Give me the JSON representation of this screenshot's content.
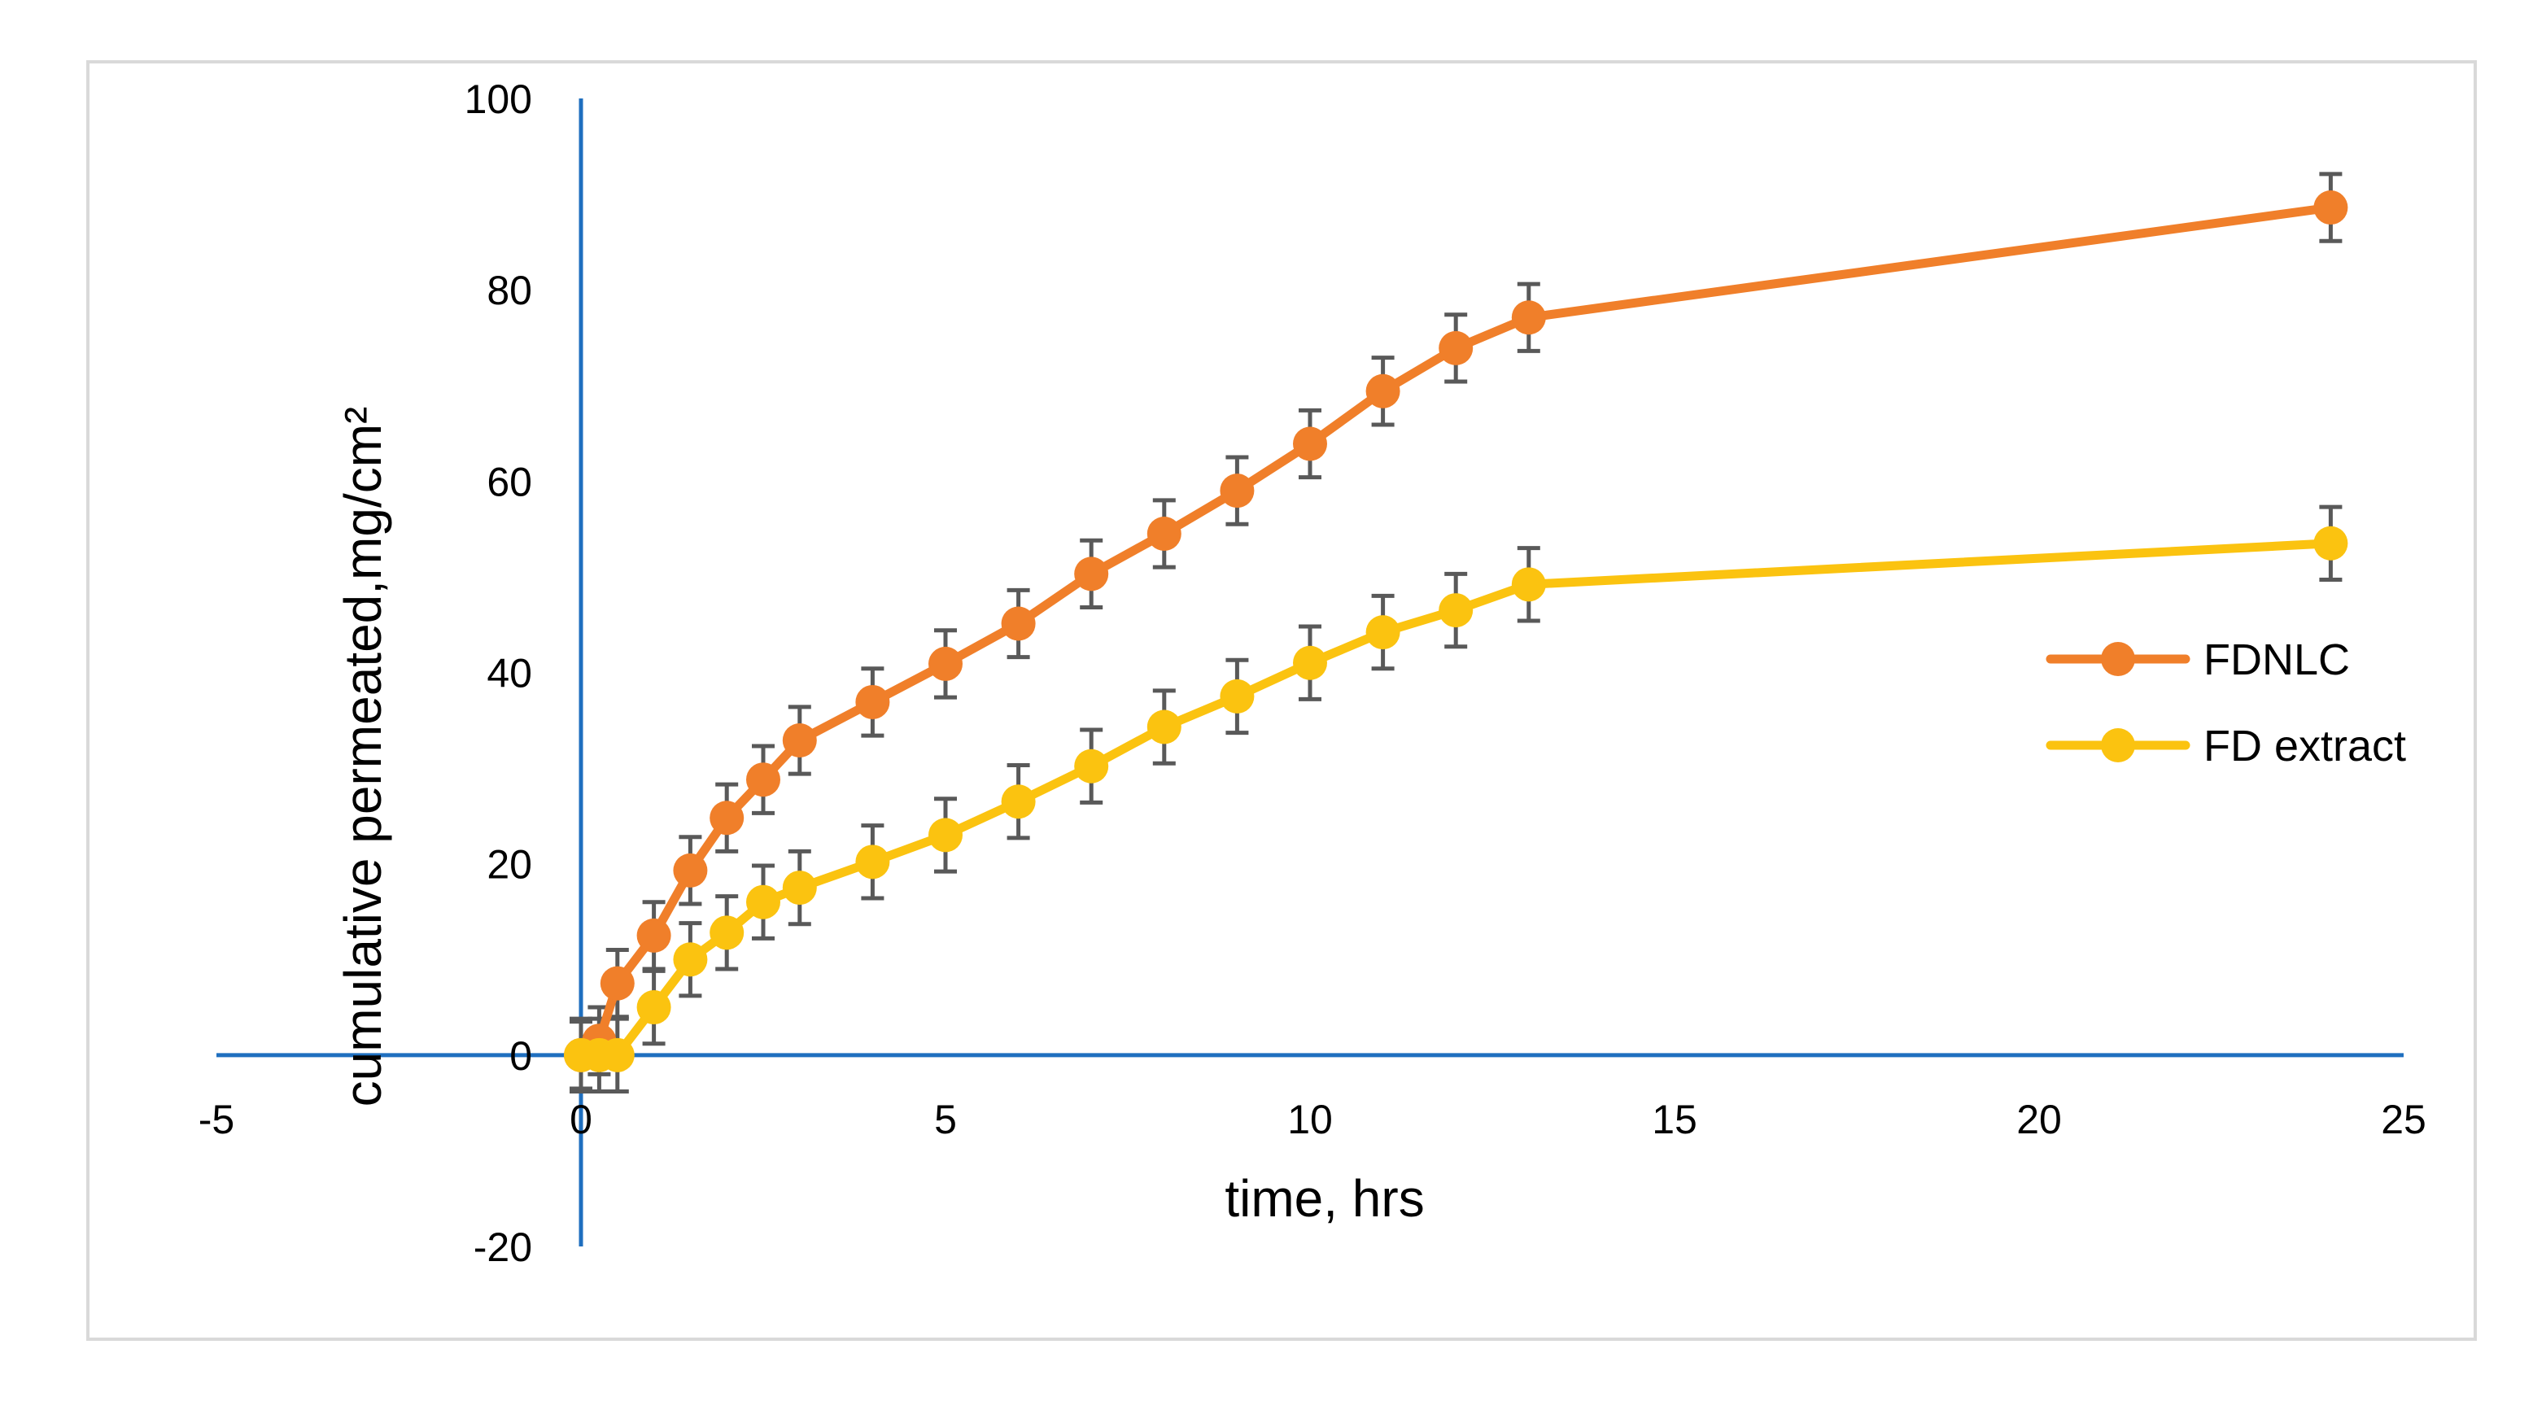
{
  "chart_data": {
    "type": "line",
    "xlabel": "time, hrs",
    "ylabel": "cumulative permeated,mg/cm²",
    "xlim": [
      -5,
      25
    ],
    "ylim": [
      -20,
      100
    ],
    "x_ticks": [
      "-5",
      "0",
      "5",
      "10",
      "15",
      "20",
      "25"
    ],
    "y_ticks": [
      "-20",
      "0",
      "20",
      "40",
      "60",
      "80",
      "100"
    ],
    "grid": false,
    "legend_position": "right",
    "x": [
      0,
      0.25,
      0.5,
      1,
      1.5,
      2,
      2.5,
      3,
      4,
      5,
      6,
      7,
      8,
      9,
      10,
      11,
      12,
      13,
      24
    ],
    "series": [
      {
        "name": "FDNLC",
        "color": "#f07f2a",
        "values": [
          0,
          1.5,
          7.5,
          12.5,
          19.3,
          24.8,
          28.8,
          32.9,
          36.9,
          40.9,
          45.1,
          50.3,
          54.5,
          59.0,
          63.9,
          69.4,
          73.9,
          77.1,
          88.6
        ],
        "error": [
          3.5,
          3.5,
          3.5,
          3.5,
          3.5,
          3.5,
          3.5,
          3.5,
          3.5,
          3.5,
          3.5,
          3.5,
          3.5,
          3.5,
          3.5,
          3.5,
          3.5,
          3.5,
          3.5
        ]
      },
      {
        "name": "FD extract",
        "color": "#fbc310",
        "values": [
          0,
          0,
          0,
          5.0,
          10.0,
          12.8,
          16.0,
          17.5,
          20.2,
          23.0,
          26.5,
          30.2,
          34.3,
          37.5,
          41.0,
          44.2,
          46.5,
          49.2,
          53.5
        ],
        "error": [
          3.8,
          3.8,
          3.8,
          3.8,
          3.8,
          3.8,
          3.8,
          3.8,
          3.8,
          3.8,
          3.8,
          3.8,
          3.8,
          3.8,
          3.8,
          3.8,
          3.8,
          3.8,
          3.8
        ]
      }
    ]
  },
  "colors": {
    "axis": "#1f6fbf",
    "error_bar": "#595959",
    "frame": "#d9d9d9"
  }
}
